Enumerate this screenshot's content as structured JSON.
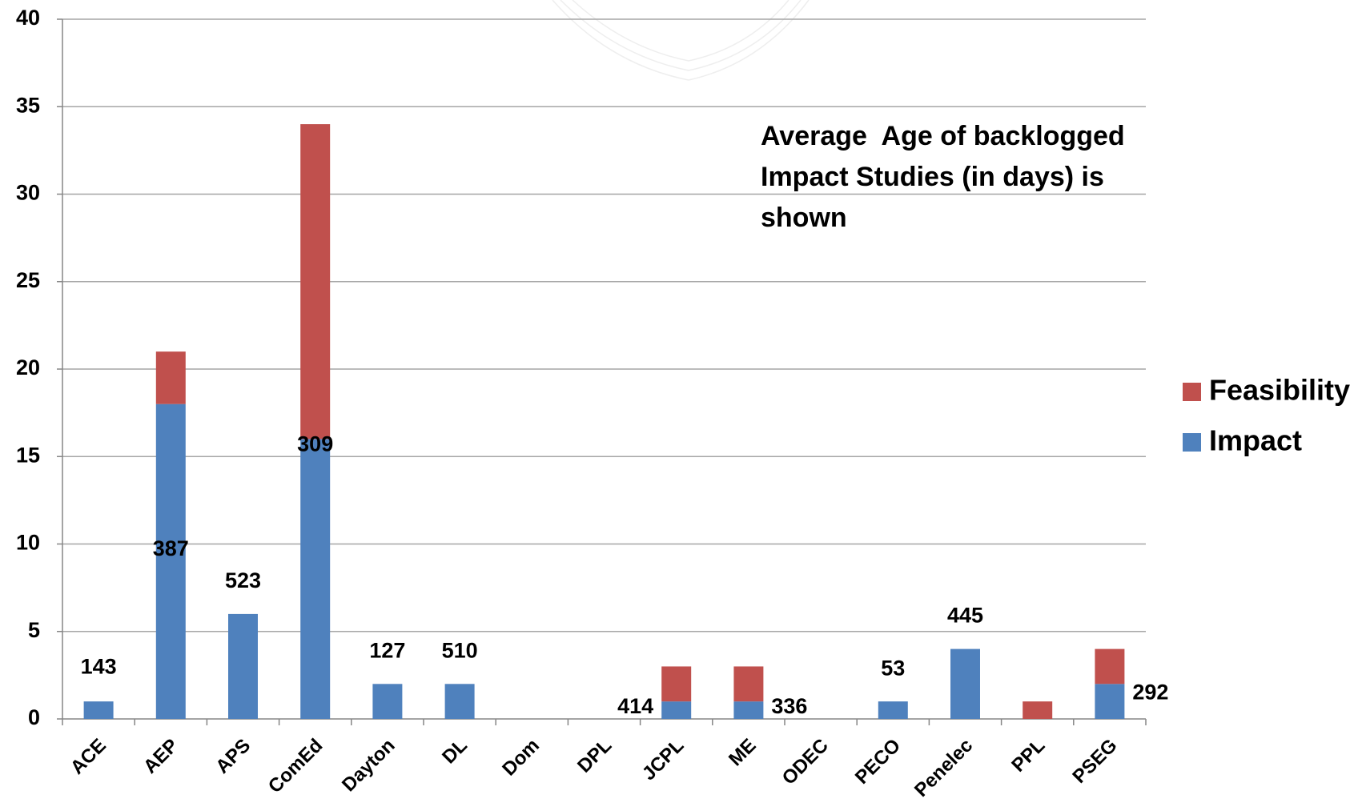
{
  "chart_data": {
    "type": "stacked-bar",
    "categories": [
      "ACE",
      "AEP",
      "APS",
      "ComEd",
      "Dayton",
      "DL",
      "Dom",
      "DPL",
      "JCPL",
      "ME",
      "ODEC",
      "PECO",
      "Penelec",
      "PPL",
      "PSEG"
    ],
    "series": [
      {
        "name": "Impact",
        "color": "#4f81bd",
        "values": [
          1,
          18,
          6,
          16,
          2,
          2,
          0,
          0,
          1,
          1,
          0,
          1,
          4,
          0,
          2
        ]
      },
      {
        "name": "Feasibility",
        "color": "#c0504d",
        "values": [
          0,
          3,
          0,
          18,
          0,
          0,
          0,
          0,
          2,
          2,
          0,
          0,
          0,
          1,
          2
        ]
      }
    ],
    "age_labels": [
      "143",
      "387",
      "523",
      "309",
      "127",
      "510",
      null,
      null,
      "414",
      "336",
      null,
      "53",
      "445",
      null,
      "292"
    ],
    "annotation": [
      "Average  Age of backlogged",
      "Impact Studies (in days) is",
      "shown"
    ],
    "ylim": [
      0,
      40
    ],
    "yticks": [
      0,
      5,
      10,
      15,
      20,
      25,
      30,
      35,
      40
    ],
    "grid": true,
    "legend": "right"
  }
}
